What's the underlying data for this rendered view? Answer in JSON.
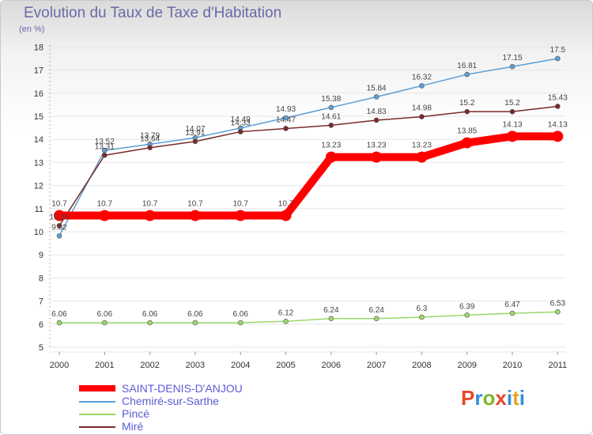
{
  "header": {
    "title": "Evolution du Taux de Taxe d'Habitation",
    "subtitle": "(en %)"
  },
  "logo": {
    "text": "Proxiti",
    "letter_colors": [
      "#e8472b",
      "#2f8ed8",
      "#7cb82a",
      "#e8472b",
      "#2f8ed8",
      "#e8a12b",
      "#2f8ed8"
    ]
  },
  "chart_data": {
    "type": "line",
    "title": "Evolution du Taux de Taxe d'Habitation",
    "ylabel": "(en %)",
    "xlabel": "",
    "x": [
      "2000",
      "2001",
      "2002",
      "2003",
      "2004",
      "2005",
      "2006",
      "2007",
      "2008",
      "2009",
      "2010",
      "2011"
    ],
    "ylim": [
      5,
      18
    ],
    "yticks": [
      "5",
      "6",
      "7",
      "8",
      "9",
      "10",
      "11",
      "12",
      "13",
      "14",
      "15",
      "16",
      "17",
      "18"
    ],
    "grid": true,
    "legend": "bottom-left",
    "series": [
      {
        "name": "SAINT-DENIS-D'ANJOU",
        "color": "#ff0000",
        "values": [
          10.7,
          10.7,
          10.7,
          10.7,
          10.7,
          10.7,
          13.23,
          13.23,
          13.23,
          13.85,
          14.13,
          14.13
        ],
        "labels": [
          "10.7",
          "10.7",
          "10.7",
          "10.7",
          "10.7",
          "10.7",
          "13.23",
          "13.23",
          "13.23",
          "13.85",
          "14.13",
          "14.13"
        ]
      },
      {
        "name": "Chemiré-sur-Sarthe",
        "color": "#5e9fd6",
        "values": [
          9.82,
          13.52,
          13.79,
          14.07,
          14.49,
          14.93,
          15.38,
          15.84,
          16.32,
          16.81,
          17.15,
          17.5
        ],
        "labels": [
          "9.82",
          "13.52",
          "13.79",
          "14.07",
          "14.49",
          "14.93",
          "15.38",
          "15.84",
          "16.32",
          "16.81",
          "17.15",
          "17.5"
        ]
      },
      {
        "name": "Pincé",
        "color": "#9ad86a",
        "values": [
          6.06,
          6.06,
          6.06,
          6.06,
          6.06,
          6.12,
          6.24,
          6.24,
          6.3,
          6.39,
          6.47,
          6.53
        ],
        "labels": [
          "6.06",
          "6.06",
          "6.06",
          "6.06",
          "6.06",
          "6.12",
          "6.24",
          "6.24",
          "6.3",
          "6.39",
          "6.47",
          "6.53"
        ]
      },
      {
        "name": "Miré",
        "color": "#7a2a2a",
        "values": [
          10.26,
          13.31,
          13.64,
          13.91,
          14.33,
          14.47,
          14.61,
          14.83,
          14.98,
          15.2,
          15.2,
          15.43
        ],
        "labels": [
          "10.26",
          "13.31",
          "13.64",
          "13.91",
          "14.33",
          "14.47",
          "14.61",
          "14.83",
          "14.98",
          "15.2",
          "15.2",
          "15.43"
        ]
      }
    ]
  }
}
